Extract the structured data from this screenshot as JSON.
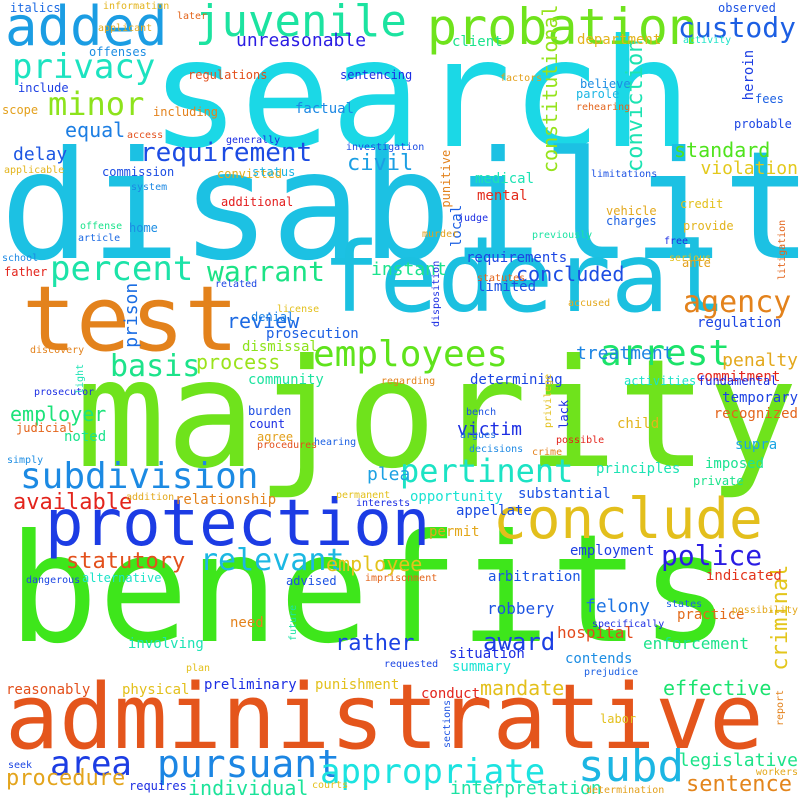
{
  "words": [
    {
      "t": "search",
      "c": "#1bd8e6",
      "v": 0
    },
    {
      "t": "disability",
      "c": "#1cc1e3",
      "v": 0
    },
    {
      "t": "majority",
      "c": "#6fe31c",
      "v": 0
    },
    {
      "t": "benefits",
      "c": "#3ee61b",
      "v": 0
    },
    {
      "t": "administrative",
      "c": "#e4551c",
      "v": 0
    },
    {
      "t": "federal",
      "c": "#1bc0e0",
      "v": 0
    },
    {
      "t": "test",
      "c": "#e3821c",
      "v": 0
    },
    {
      "t": "protection",
      "c": "#1c3ce4",
      "v": 0
    },
    {
      "t": "conclude",
      "c": "#e3bf1c",
      "v": 0
    },
    {
      "t": "probation",
      "c": "#6fe31c",
      "v": 0
    },
    {
      "t": "juvenile",
      "c": "#1ce3a0",
      "v": 0
    },
    {
      "t": "added",
      "c": "#1b9de3",
      "v": 0
    },
    {
      "t": "privacy",
      "c": "#1ce3c0",
      "v": 0
    },
    {
      "t": "minor",
      "c": "#8de31c",
      "v": 0
    },
    {
      "t": "custody",
      "c": "#1c5fe3",
      "v": 0
    },
    {
      "t": "employees",
      "c": "#5fe31c",
      "v": 0
    },
    {
      "t": "arrest",
      "c": "#1ce36a",
      "v": 0
    },
    {
      "t": "subdivision",
      "c": "#1c8ae3",
      "v": 0
    },
    {
      "t": "pertinent",
      "c": "#1ce3c4",
      "v": 0
    },
    {
      "t": "percent",
      "c": "#1ce3a8",
      "v": 0
    },
    {
      "t": "warrant",
      "c": "#1ce386",
      "v": 0
    },
    {
      "t": "requirement",
      "c": "#1c4be3",
      "v": 0
    },
    {
      "t": "agency",
      "c": "#e3821c",
      "v": 0
    },
    {
      "t": "pursuant",
      "c": "#1c86e3",
      "v": 0
    },
    {
      "t": "appropriate",
      "c": "#1ce3e0",
      "v": 0
    },
    {
      "t": "subd",
      "c": "#1cb6e3",
      "v": 0
    },
    {
      "t": "relevant",
      "c": "#1cb8e3",
      "v": 0
    },
    {
      "t": "statutory",
      "c": "#e3501c",
      "v": 0
    },
    {
      "t": "police",
      "c": "#2a1ce3",
      "v": 0
    },
    {
      "t": "criminal",
      "c": "#e3c61c",
      "v": 1
    },
    {
      "t": "constitutional",
      "c": "#96e31c",
      "v": 1
    },
    {
      "t": "conviction",
      "c": "#1ce3b2",
      "v": 1
    },
    {
      "t": "basis",
      "c": "#1ce38a",
      "v": 0
    },
    {
      "t": "process",
      "c": "#9be31c",
      "v": 0
    },
    {
      "t": "review",
      "c": "#1c6ae3",
      "v": 0
    },
    {
      "t": "civil",
      "c": "#1c9fe3",
      "v": 0
    },
    {
      "t": "standard",
      "c": "#4fe31c",
      "v": 0
    },
    {
      "t": "violation",
      "c": "#e3c91c",
      "v": 0
    },
    {
      "t": "concluded",
      "c": "#1c4de3",
      "v": 0
    },
    {
      "t": "instant",
      "c": "#1ce38e",
      "v": 0
    },
    {
      "t": "equal",
      "c": "#1c7ee3",
      "v": 0
    },
    {
      "t": "delay",
      "c": "#1c56e3",
      "v": 0
    },
    {
      "t": "unreasonable",
      "c": "#2a1ce3",
      "v": 0
    },
    {
      "t": "client",
      "c": "#1ce38c",
      "v": 0
    },
    {
      "t": "department",
      "c": "#e3b41c",
      "v": 0
    },
    {
      "t": "area",
      "c": "#1c3de3",
      "v": 0
    },
    {
      "t": "procedure",
      "c": "#e3a41c",
      "v": 0
    },
    {
      "t": "available",
      "c": "#e3241c",
      "v": 0
    },
    {
      "t": "employer",
      "c": "#1ce37a",
      "v": 0
    },
    {
      "t": "prison",
      "c": "#1c6ee3",
      "v": 1
    },
    {
      "t": "treatment",
      "c": "#1c84e3",
      "v": 0
    },
    {
      "t": "penalty",
      "c": "#e3a81c",
      "v": 0
    },
    {
      "t": "regulation",
      "c": "#1c46e3",
      "v": 0
    },
    {
      "t": "commitment",
      "c": "#e3241c",
      "v": 0
    },
    {
      "t": "sentence",
      "c": "#e3851c",
      "v": 0
    },
    {
      "t": "legislative",
      "c": "#1ce389",
      "v": 0
    },
    {
      "t": "mandate",
      "c": "#e3c01c",
      "v": 0
    },
    {
      "t": "effective",
      "c": "#1ce370",
      "v": 0
    },
    {
      "t": "award",
      "c": "#1c3ee3",
      "v": 0
    },
    {
      "t": "rather",
      "c": "#1c42e3",
      "v": 0
    },
    {
      "t": "plea",
      "c": "#1ca1e3",
      "v": 0
    },
    {
      "t": "victim",
      "c": "#1c2ee3",
      "v": 0
    },
    {
      "t": "noted",
      "c": "#1ce38e",
      "v": 0
    },
    {
      "t": "employee",
      "c": "#e3c31c",
      "v": 0
    },
    {
      "t": "individual",
      "c": "#1ce39a",
      "v": 0
    },
    {
      "t": "interpretation",
      "c": "#1ce3a3",
      "v": 0
    },
    {
      "t": "hospital",
      "c": "#e34a1c",
      "v": 0
    },
    {
      "t": "enforcement",
      "c": "#1ce38b",
      "v": 0
    },
    {
      "t": "practice",
      "c": "#e36b1c",
      "v": 0
    },
    {
      "t": "felony",
      "c": "#1c73e3",
      "v": 0
    },
    {
      "t": "robbery",
      "c": "#1c53e3",
      "v": 0
    },
    {
      "t": "summary",
      "c": "#1ce3d4",
      "v": 0
    },
    {
      "t": "contends",
      "c": "#1c8de3",
      "v": 0
    },
    {
      "t": "arbitration",
      "c": "#1c55e3",
      "v": 0
    },
    {
      "t": "employment",
      "c": "#1c3ee3",
      "v": 0
    },
    {
      "t": "indicated",
      "c": "#e3341c",
      "v": 0
    },
    {
      "t": "substantial",
      "c": "#1c52e3",
      "v": 0
    },
    {
      "t": "imposed",
      "c": "#1ce392",
      "v": 0
    },
    {
      "t": "private",
      "c": "#1ce38c",
      "v": 0
    },
    {
      "t": "supra",
      "c": "#1ca6e3",
      "v": 0
    },
    {
      "t": "principles",
      "c": "#1ce3b4",
      "v": 0
    },
    {
      "t": "relationship",
      "c": "#e3821c",
      "v": 0
    },
    {
      "t": "opportunity",
      "c": "#1ce3d3",
      "v": 0
    },
    {
      "t": "appellate",
      "c": "#1c4de3",
      "v": 0
    },
    {
      "t": "permit",
      "c": "#e3a81c",
      "v": 0
    },
    {
      "t": "recognized",
      "c": "#e3651c",
      "v": 0
    },
    {
      "t": "temporary",
      "c": "#1c42e3",
      "v": 0
    },
    {
      "t": "fundamental",
      "c": "#1c2ee3",
      "v": 0
    },
    {
      "t": "activities",
      "c": "#1ce3c8",
      "v": 0
    },
    {
      "t": "child",
      "c": "#e3b41c",
      "v": 0
    },
    {
      "t": "determining",
      "c": "#1c46e3",
      "v": 0
    },
    {
      "t": "community",
      "c": "#1ce39f",
      "v": 0
    },
    {
      "t": "dismissal",
      "c": "#8de31c",
      "v": 0
    },
    {
      "t": "prosecution",
      "c": "#1c60e3",
      "v": 0
    },
    {
      "t": "denial",
      "c": "#1c82e3",
      "v": 0
    },
    {
      "t": "limited",
      "c": "#1c52e3",
      "v": 0
    },
    {
      "t": "requirements",
      "c": "#1c46e3",
      "v": 0
    },
    {
      "t": "medical",
      "c": "#1ce3b4",
      "v": 0
    },
    {
      "t": "mental",
      "c": "#e32c1c",
      "v": 0
    },
    {
      "t": "factual",
      "c": "#1c88e3",
      "v": 0
    },
    {
      "t": "sentencing",
      "c": "#1c2ee3",
      "v": 0
    },
    {
      "t": "commission",
      "c": "#1c4de3",
      "v": 0
    },
    {
      "t": "additional",
      "c": "#e31c1c",
      "v": 0
    },
    {
      "t": "convicted",
      "c": "#e3ab1c",
      "v": 0
    },
    {
      "t": "status",
      "c": "#1cb6e3",
      "v": 0
    },
    {
      "t": "regulations",
      "c": "#e3501c",
      "v": 0
    },
    {
      "t": "offenses",
      "c": "#1c8de3",
      "v": 0
    },
    {
      "t": "applicant",
      "c": "#e3a81c",
      "v": 0
    },
    {
      "t": "include",
      "c": "#1c3ee3",
      "v": 0
    },
    {
      "t": "scope",
      "c": "#e3a01c",
      "v": 0
    },
    {
      "t": "italics",
      "c": "#1c6ae3",
      "v": 0
    },
    {
      "t": "information",
      "c": "#e3b41c",
      "v": 0
    },
    {
      "t": "later",
      "c": "#e3651c",
      "v": 0
    },
    {
      "t": "observed",
      "c": "#1c52e3",
      "v": 0
    },
    {
      "t": "activity",
      "c": "#1ce3c8",
      "v": 0
    },
    {
      "t": "believe",
      "c": "#1c8de3",
      "v": 0
    },
    {
      "t": "parole",
      "c": "#1cb6e3",
      "v": 0
    },
    {
      "t": "rehearing",
      "c": "#e3651c",
      "v": 0
    },
    {
      "t": "heroin",
      "c": "#1c3ee3",
      "v": 1
    },
    {
      "t": "factors",
      "c": "#e3a01c",
      "v": 0
    },
    {
      "t": "including",
      "c": "#e3821c",
      "v": 0
    },
    {
      "t": "access",
      "c": "#e3501c",
      "v": 0
    },
    {
      "t": "generally",
      "c": "#1c2ee3",
      "v": 0
    },
    {
      "t": "investigation",
      "c": "#1c4de3",
      "v": 0
    },
    {
      "t": "fees",
      "c": "#1c60e3",
      "v": 0
    },
    {
      "t": "probable",
      "c": "#1c46e3",
      "v": 0
    },
    {
      "t": "applicable",
      "c": "#e3b41c",
      "v": 0
    },
    {
      "t": "system",
      "c": "#1c88e3",
      "v": 0
    },
    {
      "t": "limitations",
      "c": "#1c52e3",
      "v": 0
    },
    {
      "t": "vehicle",
      "c": "#e3a81c",
      "v": 0
    },
    {
      "t": "charges",
      "c": "#1c60e3",
      "v": 0
    },
    {
      "t": "credit",
      "c": "#e3c01c",
      "v": 0
    },
    {
      "t": "provide",
      "c": "#e3b41c",
      "v": 0
    },
    {
      "t": "previously",
      "c": "#1ce3a3",
      "v": 0
    },
    {
      "t": "home",
      "c": "#1c8de3",
      "v": 0
    },
    {
      "t": "offense",
      "c": "#1ce38c",
      "v": 0
    },
    {
      "t": "article",
      "c": "#1c6ae3",
      "v": 0
    },
    {
      "t": "punitive",
      "c": "#e3821c",
      "v": 1
    },
    {
      "t": "local",
      "c": "#1c60e3",
      "v": 1
    },
    {
      "t": "judge",
      "c": "#1c2ee3",
      "v": 0
    },
    {
      "t": "murder",
      "c": "#e3a01c",
      "v": 0
    },
    {
      "t": "free",
      "c": "#1c2ee3",
      "v": 0
    },
    {
      "t": "serious",
      "c": "#e3c01c",
      "v": 0
    },
    {
      "t": "ante",
      "c": "#e3a01c",
      "v": 0
    },
    {
      "t": "litigation",
      "c": "#e3651c",
      "v": 1
    },
    {
      "t": "school",
      "c": "#1c88e3",
      "v": 0
    },
    {
      "t": "father",
      "c": "#e3241c",
      "v": 0
    },
    {
      "t": "related",
      "c": "#1c46e3",
      "v": 0
    },
    {
      "t": "statutes",
      "c": "#e3651c",
      "v": 0
    },
    {
      "t": "license",
      "c": "#e3c01c",
      "v": 0
    },
    {
      "t": "accused",
      "c": "#e3a81c",
      "v": 0
    },
    {
      "t": "disposition",
      "c": "#1c2ee3",
      "v": 1
    },
    {
      "t": "discovery",
      "c": "#e3821c",
      "v": 0
    },
    {
      "t": "prosecutor",
      "c": "#1c2ee3",
      "v": 0
    },
    {
      "t": "light",
      "c": "#1ce3b4",
      "v": 1
    },
    {
      "t": "judicial",
      "c": "#e3651c",
      "v": 0
    },
    {
      "t": "regarding",
      "c": "#e3821c",
      "v": 0
    },
    {
      "t": "privilege",
      "c": "#e3c01c",
      "v": 1
    },
    {
      "t": "lack",
      "c": "#1c2ee3",
      "v": 1
    },
    {
      "t": "bench",
      "c": "#1c52e3",
      "v": 0
    },
    {
      "t": "count",
      "c": "#1c2ee3",
      "v": 0
    },
    {
      "t": "burden",
      "c": "#1c4de3",
      "v": 0
    },
    {
      "t": "agree",
      "c": "#e3a01c",
      "v": 0
    },
    {
      "t": "procedures",
      "c": "#e3501c",
      "v": 0
    },
    {
      "t": "argues",
      "c": "#1c6ae3",
      "v": 0
    },
    {
      "t": "decisions",
      "c": "#1c88e3",
      "v": 0
    },
    {
      "t": "possible",
      "c": "#e3241c",
      "v": 0
    },
    {
      "t": "crime",
      "c": "#e3821c",
      "v": 0
    },
    {
      "t": "hearing",
      "c": "#1c60e3",
      "v": 0
    },
    {
      "t": "simply",
      "c": "#1c8de3",
      "v": 0
    },
    {
      "t": "addition",
      "c": "#e3a81c",
      "v": 0
    },
    {
      "t": "permanent",
      "c": "#e3c01c",
      "v": 0
    },
    {
      "t": "interests",
      "c": "#1c2ee3",
      "v": 0
    },
    {
      "t": "advised",
      "c": "#1c52e3",
      "v": 0
    },
    {
      "t": "imprisonment",
      "c": "#e3651c",
      "v": 0
    },
    {
      "t": "dangerous",
      "c": "#1c46e3",
      "v": 0
    },
    {
      "t": "alternative",
      "c": "#1ce3c8",
      "v": 0
    },
    {
      "t": "need",
      "c": "#e3821c",
      "v": 0
    },
    {
      "t": "involving",
      "c": "#1ce3b4",
      "v": 0
    },
    {
      "t": "future",
      "c": "#1ce3a3",
      "v": 1
    },
    {
      "t": "situation",
      "c": "#1c2ee3",
      "v": 0
    },
    {
      "t": "states",
      "c": "#1c60e3",
      "v": 0
    },
    {
      "t": "possibility",
      "c": "#e3a81c",
      "v": 0
    },
    {
      "t": "specifically",
      "c": "#1c2ee3",
      "v": 0
    },
    {
      "t": "plan",
      "c": "#e3c01c",
      "v": 0
    },
    {
      "t": "requested",
      "c": "#1c46e3",
      "v": 0
    },
    {
      "t": "prejudice",
      "c": "#1c60e3",
      "v": 0
    },
    {
      "t": "reasonably",
      "c": "#e3501c",
      "v": 0
    },
    {
      "t": "physical",
      "c": "#e3c01c",
      "v": 0
    },
    {
      "t": "preliminary",
      "c": "#1c2ee3",
      "v": 0
    },
    {
      "t": "punishment",
      "c": "#e3c01c",
      "v": 0
    },
    {
      "t": "conduct",
      "c": "#e3241c",
      "v": 0
    },
    {
      "t": "labor",
      "c": "#e3c01c",
      "v": 0
    },
    {
      "t": "sections",
      "c": "#1c52e3",
      "v": 1
    },
    {
      "t": "report",
      "c": "#e3821c",
      "v": 1
    },
    {
      "t": "workers",
      "c": "#e3a81c",
      "v": 0
    },
    {
      "t": "seek",
      "c": "#1c46e3",
      "v": 0
    },
    {
      "t": "requires",
      "c": "#1c2ee3",
      "v": 0
    },
    {
      "t": "courts",
      "c": "#e3c01c",
      "v": 0
    },
    {
      "t": "determination",
      "c": "#e3a01c",
      "v": 0
    }
  ]
}
